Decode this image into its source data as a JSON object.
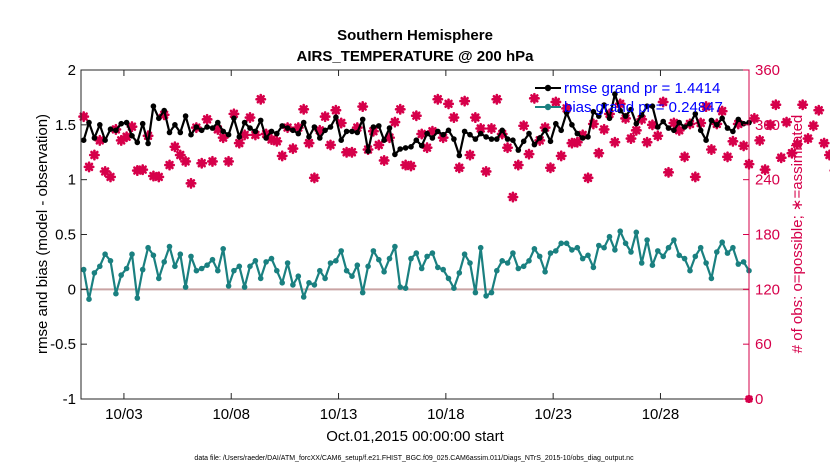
{
  "chart_data": {
    "type": "line",
    "title": [
      "Southern Hemisphere",
      "AIRS_TEMPERATURE @ 200 hPa"
    ],
    "xlabel": "Oct.01,2015 00:00:00 start",
    "ylabel": "rmse and bias (model - observation)",
    "y2label": "# of obs: o=possible; ∗=assimilated",
    "xlim": [
      1.0,
      32.125
    ],
    "ylim": [
      -1,
      2
    ],
    "y2lim": [
      0,
      360
    ],
    "x_ticks": [
      3,
      8,
      13,
      18,
      23,
      28
    ],
    "x_tick_labels": [
      "10/03",
      "10/08",
      "10/13",
      "10/18",
      "10/23",
      "10/28"
    ],
    "y_ticks": [
      -1,
      -0.5,
      0,
      0.5,
      1,
      1.5,
      2
    ],
    "y_tick_labels": [
      "-1",
      "-0.5",
      "0",
      "0.5",
      "1",
      "1.5",
      "2"
    ],
    "y2_ticks": [
      0,
      60,
      120,
      180,
      240,
      300,
      360
    ],
    "y2_tick_labels": [
      "0",
      "60",
      "120",
      "180",
      "240",
      "300",
      "360"
    ],
    "x_step_days": 0.25,
    "x_start": 1.125,
    "series": [
      {
        "name": "rmse grand pr = 1.4414",
        "axis": "left",
        "color": "#000000",
        "marker": "circle",
        "values": [
          1.36,
          1.52,
          1.38,
          1.5,
          1.36,
          1.46,
          1.45,
          1.51,
          1.52,
          1.4,
          1.34,
          1.51,
          1.33,
          1.67,
          1.56,
          1.63,
          1.43,
          1.5,
          1.43,
          1.58,
          1.41,
          1.48,
          1.45,
          1.48,
          1.47,
          1.52,
          1.44,
          1.41,
          1.56,
          1.39,
          1.52,
          1.47,
          1.44,
          1.54,
          1.38,
          1.44,
          1.42,
          1.49,
          1.47,
          1.45,
          1.42,
          1.52,
          1.39,
          1.48,
          1.38,
          1.45,
          1.48,
          1.57,
          1.36,
          1.44,
          1.44,
          1.43,
          1.55,
          1.26,
          1.48,
          1.49,
          1.36,
          1.47,
          1.23,
          1.28,
          1.29,
          1.3,
          1.36,
          1.31,
          1.42,
          1.38,
          1.44,
          1.41,
          1.45,
          1.37,
          1.22,
          1.44,
          1.41,
          1.37,
          1.42,
          1.39,
          1.37,
          1.37,
          1.45,
          1.37,
          1.36,
          1.27,
          1.35,
          1.42,
          1.32,
          1.38,
          1.45,
          1.35,
          1.51,
          1.45,
          1.61,
          1.5,
          1.42,
          1.38,
          1.39,
          1.62,
          1.58,
          1.68,
          1.56,
          1.78,
          1.63,
          1.58,
          1.64,
          1.51,
          1.59,
          1.67,
          1.67,
          1.48,
          1.53,
          1.47,
          1.45,
          1.52,
          1.48,
          1.51,
          1.6,
          1.45,
          1.36,
          1.54,
          1.5,
          1.56,
          1.47,
          1.44,
          1.55,
          1.51,
          1.52,
          1.33,
          1.41,
          1.34,
          1.58,
          1.43,
          1.5,
          1.58,
          1.24,
          1.45,
          1.52,
          1.41,
          1.53,
          1.35,
          1.42,
          1.52,
          1.47,
          1.3,
          1.49,
          1.43,
          1.41,
          1.52,
          1.47,
          1.41,
          1.49,
          1.37,
          1.44,
          1.33,
          1.45,
          1.55,
          1.42,
          1.5,
          1.53,
          1.51,
          1.55,
          1.38,
          1.43,
          1.38,
          1.4,
          1.57,
          1.37,
          1.42,
          1.58,
          1.4,
          1.33,
          1.57,
          1.47,
          1.45,
          1.53,
          1.41,
          1.39,
          1.64,
          1.53,
          1.4,
          1.46,
          1.39,
          1.56,
          1.51,
          1.42,
          1.53,
          1.45,
          1.51,
          1.52,
          1.57,
          1.52,
          1.4,
          1.47,
          1.45,
          1.51,
          1.54,
          1.56,
          1.5,
          1.47,
          1.51,
          1.43,
          1.45,
          1.51,
          1.48,
          1.48,
          1.49,
          1.47,
          1.5,
          1.42,
          1.43,
          1.49,
          1.46,
          1.5,
          1.5,
          1.4,
          1.43,
          1.47,
          1.47,
          1.45,
          1.44,
          1.46,
          1.46,
          1.47,
          1.43,
          1.45,
          1.47,
          1.49,
          1.43,
          1.46,
          1.52,
          1.46,
          1.46,
          1.46,
          1.53,
          1.48,
          1.46,
          1.5,
          1.44,
          1.46,
          1.47,
          1.44,
          1.49,
          1.45,
          1.48,
          1.43,
          1.46,
          1.52,
          1.48,
          1.47,
          1.45,
          1.43
        ]
      },
      {
        "name": "bias grand pr = 0.24847",
        "axis": "left",
        "color": "#1a8080",
        "marker": "circle",
        "values": [
          0.18,
          -0.09,
          0.15,
          0.21,
          0.32,
          0.26,
          -0.04,
          0.13,
          0.19,
          0.32,
          -0.08,
          0.18,
          0.38,
          0.31,
          0.1,
          0.25,
          0.39,
          0.21,
          0.32,
          0.02,
          0.3,
          0.17,
          0.19,
          0.22,
          0.27,
          0.17,
          0.37,
          0.03,
          0.17,
          0.21,
          0.02,
          0.21,
          0.26,
          0.1,
          0.25,
          0.28,
          0.17,
          0.06,
          0.24,
          0.04,
          0.12,
          -0.07,
          0.06,
          0.04,
          0.17,
          0.1,
          0.24,
          0.26,
          0.35,
          0.17,
          0.12,
          0.22,
          -0.03,
          0.21,
          0.35,
          0.27,
          0.16,
          0.28,
          0.39,
          0.02,
          0.01,
          0.28,
          0.33,
          0.19,
          0.3,
          0.33,
          0.2,
          0.18,
          0.1,
          0.01,
          0.15,
          0.32,
          0.24,
          -0.03,
          0.38,
          -0.06,
          -0.03,
          0.17,
          0.26,
          0.24,
          0.33,
          0.19,
          0.21,
          0.26,
          0.37,
          0.3,
          0.16,
          0.33,
          0.35,
          0.42,
          0.42,
          0.36,
          0.38,
          0.28,
          0.31,
          0.2,
          0.4,
          0.38,
          0.48,
          0.36,
          0.53,
          0.42,
          0.34,
          0.52,
          0.24,
          0.45,
          0.22,
          0.35,
          0.3,
          0.38,
          0.45,
          0.31,
          0.28,
          0.17,
          0.3,
          0.38,
          0.24,
          0.1,
          0.34,
          0.43,
          0.33,
          0.38,
          0.23,
          0.25,
          0.17,
          0.2,
          0.36,
          0.44,
          0.28,
          0.17,
          0.33,
          0.12,
          0.42,
          0.42,
          0.27,
          0.4,
          0.2,
          0.28,
          0.39,
          0.16,
          0.36,
          0.21,
          0.3,
          0.43,
          0.35,
          0.27,
          0.15,
          0.37,
          0.31,
          0.27,
          0.21,
          0.42,
          0.29,
          0.35,
          0.32,
          0.46,
          0.29,
          0.41,
          0.32,
          0.47,
          0.4,
          0.21,
          0.35,
          0.36,
          0.33,
          0.25,
          0.42,
          0.26,
          0.29,
          0.43,
          0.3,
          0.38,
          0.34,
          0.41,
          0.27,
          0.36,
          0.33,
          0.26,
          0.45,
          0.35,
          0.37,
          0.29,
          0.46,
          0.32,
          0.4,
          0.48,
          0.32,
          0.42,
          0.26,
          0.42,
          0.33,
          0.43,
          0.22,
          0.34,
          0.4,
          0.3,
          0.28,
          0.45,
          0.37,
          0.43,
          0.27,
          0.38,
          0.41,
          0.3,
          0.28,
          0.36,
          0.44,
          0.37,
          0.25,
          0.38,
          0.29,
          0.37,
          0.4,
          0.33,
          0.41,
          0.3,
          0.32,
          0.38,
          0.32,
          0.43,
          0.36,
          0.3,
          0.39,
          0.26,
          0.35,
          0.42,
          0.28,
          0.3,
          0.38,
          0.4,
          0.38,
          0.42,
          0.45,
          0.61
        ]
      },
      {
        "name": "obs assimilated",
        "axis": "right",
        "color": "#d6004a",
        "marker": "star",
        "values": [
          309,
          254,
          267,
          283,
          249,
          243,
          295,
          283,
          287,
          298,
          250,
          251,
          288,
          244,
          243,
          311,
          256,
          276,
          267,
          260,
          236,
          297,
          258,
          306,
          260,
          295,
          286,
          260,
          312,
          280,
          289,
          308,
          289,
          328,
          290,
          284,
          282,
          266,
          297,
          274,
          297,
          317,
          280,
          242,
          294,
          309,
          278,
          316,
          302,
          270,
          270,
          297,
          320,
          273,
          293,
          278,
          261,
          286,
          303,
          317,
          256,
          255,
          310,
          290,
          275,
          293,
          328,
          286,
          323,
          308,
          253,
          326,
          267,
          308,
          296,
          249,
          296,
          328,
          290,
          275,
          221,
          256,
          299,
          268,
          329,
          283,
          297,
          253,
          325,
          266,
          318,
          280,
          281,
          289,
          242,
          301,
          269,
          295,
          312,
          281,
          323,
          307,
          285,
          294,
          306,
          281,
          300,
          288,
          325,
          248,
          302,
          294,
          265,
          301,
          243,
          302,
          320,
          273,
          301,
          315,
          265,
          282,
          301,
          277,
          257,
          307,
          283,
          251,
          300,
          322,
          264,
          303,
          269,
          279,
          322,
          285,
          299,
          316,
          280,
          267,
          250,
          283,
          310,
          263,
          302,
          321,
          275,
          301,
          255,
          312,
          289,
          267,
          324,
          292,
          284,
          299,
          319,
          264,
          311,
          277,
          290,
          308,
          282,
          273,
          327,
          233,
          287,
          309,
          293,
          269,
          296,
          281,
          314,
          244,
          283,
          305,
          277,
          285,
          294,
          316,
          312,
          278,
          252,
          298,
          264,
          305,
          284,
          291,
          266,
          302,
          278,
          311,
          288,
          262,
          285,
          294,
          313,
          279,
          272,
          301,
          287,
          259,
          322,
          283,
          294,
          276,
          296,
          262,
          305,
          283,
          298,
          319,
          270,
          282,
          301,
          314,
          264,
          293,
          276,
          299,
          322,
          277,
          249,
          296,
          281,
          312,
          274,
          288,
          304,
          285,
          310,
          322,
          287,
          233,
          298,
          328,
          310,
          307,
          285,
          300,
          319,
          293
        ]
      },
      {
        "name": "obs possible",
        "axis": "right",
        "color": "#d6004a",
        "marker": "circle-open",
        "values": []
      }
    ],
    "zero_line_color": "#c9a4a4",
    "footnote": "data file: /Users/raeder/DAI/ATM_forcXX/CAM6_setup/f.e21.FHIST_BGC.f09_025.CAM6assim.011/Diags_NTrS_2015-10/obs_diag_output.nc"
  }
}
